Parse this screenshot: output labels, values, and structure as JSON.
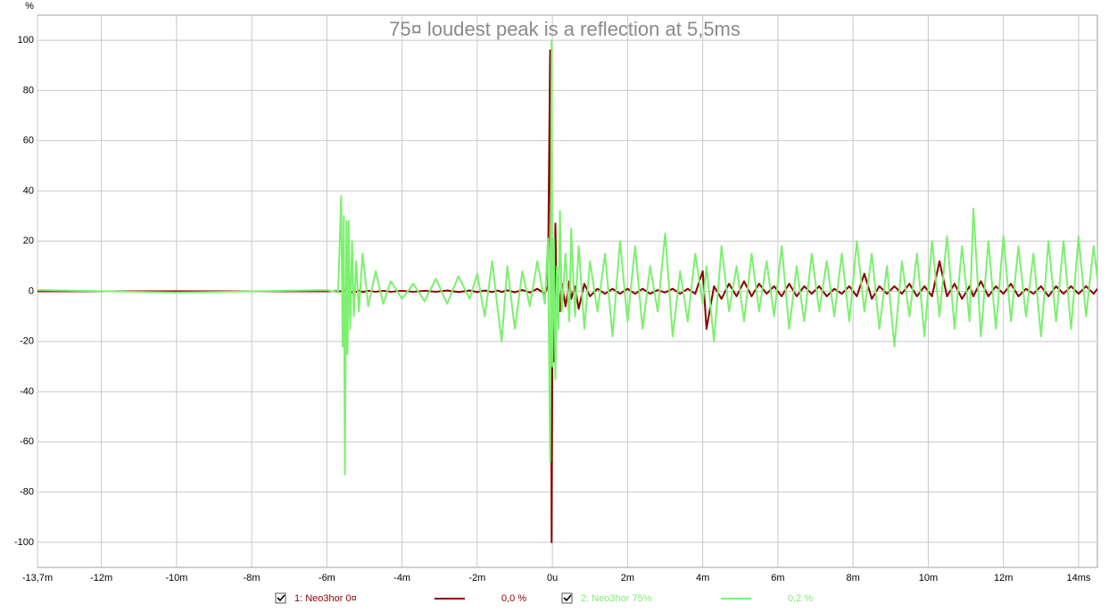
{
  "chart_data": {
    "type": "line",
    "title": "75¤ loudest peak is a reflection at 5,5ms",
    "ylabel": "%",
    "x": [
      -13.7,
      -10,
      -6,
      -5.7,
      -5.62,
      -5.58,
      -5.55,
      -5.52,
      -5.48,
      -5.45,
      -5.42,
      -5.38,
      -5.33,
      -5.28,
      -5.22,
      -5.15,
      -5.05,
      -4.9,
      -4.7,
      -4.5,
      -4.3,
      -4,
      -3.7,
      -3.4,
      -3.1,
      -2.8,
      -2.5,
      -2.2,
      -2,
      -1.8,
      -1.6,
      -1.45,
      -1.35,
      -1.2,
      -1,
      -0.8,
      -0.6,
      -0.4,
      -0.2,
      -0.12,
      -0.06,
      -0.02,
      0,
      0.04,
      0.08,
      0.12,
      0.16,
      0.2,
      0.25,
      0.35,
      0.45,
      0.5,
      0.6,
      0.7,
      0.85,
      1,
      1.2,
      1.4,
      1.6,
      1.8,
      2,
      2.2,
      2.4,
      2.6,
      2.8,
      3,
      3.2,
      3.4,
      3.6,
      3.8,
      4,
      4.1,
      4.3,
      4.5,
      4.7,
      4.9,
      5.1,
      5.3,
      5.5,
      5.7,
      5.9,
      6.1,
      6.3,
      6.5,
      6.7,
      6.9,
      7.1,
      7.3,
      7.5,
      7.7,
      7.9,
      8.1,
      8.3,
      8.5,
      8.7,
      8.9,
      9.1,
      9.3,
      9.5,
      9.7,
      9.9,
      10.1,
      10.3,
      10.5,
      10.7,
      10.9,
      11.1,
      11.2,
      11.4,
      11.6,
      11.8,
      12,
      12.2,
      12.4,
      12.6,
      12.8,
      13,
      13.2,
      13.4,
      13.6,
      13.8,
      14,
      14.2,
      14.4,
      14.5
    ],
    "series": [
      {
        "name": "1: Neo3hor 0¤",
        "legend_value": "0,0 %",
        "color": "#8b0000",
        "values": [
          0,
          0,
          0,
          0,
          0,
          0,
          0,
          0.5,
          -0.5,
          0.5,
          -0.5,
          0.5,
          -0.5,
          0.3,
          -0.3,
          0.3,
          -0.3,
          0.2,
          -0.2,
          0.2,
          -0.2,
          0.2,
          -0.2,
          0.2,
          -0.2,
          0.3,
          -0.3,
          0.3,
          -0.3,
          0.3,
          -0.3,
          0.3,
          -0.3,
          0.4,
          -0.4,
          0.5,
          -0.5,
          1,
          -1,
          2,
          96,
          -100,
          -20,
          -28,
          27,
          -10,
          5,
          -8,
          3,
          -6,
          4,
          -3,
          2,
          -7,
          3,
          -2,
          1,
          -1,
          1,
          -1,
          1,
          -1,
          1,
          -1,
          0.5,
          -0.5,
          1,
          -1,
          1,
          -1,
          8,
          -15,
          2,
          -3,
          3,
          -2,
          4,
          -2,
          3,
          -1,
          2,
          -2,
          3,
          -2,
          2,
          -1,
          2,
          -2,
          1,
          -1,
          2,
          -2,
          7,
          -3,
          2,
          -1,
          2,
          -1,
          3,
          -2,
          2,
          -2,
          12,
          -2,
          3,
          -3,
          2,
          -2,
          4,
          -2,
          2,
          -1,
          3,
          -2,
          1,
          -1,
          2,
          -2,
          2,
          -1,
          2,
          -1,
          2,
          -1,
          1
        ]
      },
      {
        "name": "2: Neo3hor 75%",
        "legend_value": "0,2 %",
        "color": "#7cf06f",
        "values": [
          0.5,
          -0.5,
          0.5,
          -0.5,
          38,
          -22,
          30,
          -73,
          28,
          -25,
          28,
          -15,
          20,
          -10,
          12,
          -8,
          15,
          -6,
          8,
          -5,
          4,
          -3,
          3,
          -4,
          5,
          -5,
          6,
          -3,
          7,
          -10,
          12,
          -8,
          -20,
          10,
          -15,
          8,
          -6,
          12,
          -5,
          21,
          -68,
          100,
          -30,
          21,
          -35,
          10,
          -15,
          32,
          -8,
          15,
          -12,
          25,
          -10,
          18,
          -15,
          12,
          -8,
          15,
          -18,
          20,
          -12,
          18,
          -15,
          10,
          -8,
          23,
          -18,
          8,
          -12,
          15,
          -5,
          10,
          -20,
          18,
          -8,
          10,
          -12,
          15,
          -8,
          12,
          -10,
          18,
          -15,
          10,
          -12,
          15,
          -8,
          12,
          -10,
          15,
          -12,
          20,
          -8,
          15,
          -15,
          10,
          -22,
          12,
          -10,
          15,
          -18,
          20,
          -10,
          22,
          -15,
          18,
          -12,
          33,
          -18,
          20,
          -15,
          22,
          -12,
          18,
          -10,
          15,
          -18,
          20,
          -12,
          20,
          -15,
          22,
          -10,
          18,
          5
        ]
      }
    ],
    "xlim": [
      -13.7,
      14.5
    ],
    "ylim": [
      -110,
      110
    ],
    "xticks": [
      {
        "value": -13.7,
        "label": "-13,7m"
      },
      {
        "value": -12,
        "label": "-12m"
      },
      {
        "value": -10,
        "label": "-10m"
      },
      {
        "value": -8,
        "label": "-8m"
      },
      {
        "value": -6,
        "label": "-6m"
      },
      {
        "value": -4,
        "label": "-4m"
      },
      {
        "value": -2,
        "label": "-2m"
      },
      {
        "value": 0,
        "label": "0u"
      },
      {
        "value": 2,
        "label": "2m"
      },
      {
        "value": 4,
        "label": "4m"
      },
      {
        "value": 6,
        "label": "6m"
      },
      {
        "value": 8,
        "label": "8m"
      },
      {
        "value": 10,
        "label": "10m"
      },
      {
        "value": 12,
        "label": "12m"
      },
      {
        "value": 14,
        "label": "14ms"
      }
    ],
    "yticks": [
      -100,
      -80,
      -60,
      -40,
      -20,
      0,
      20,
      40,
      60,
      80,
      100
    ],
    "grid": true
  }
}
